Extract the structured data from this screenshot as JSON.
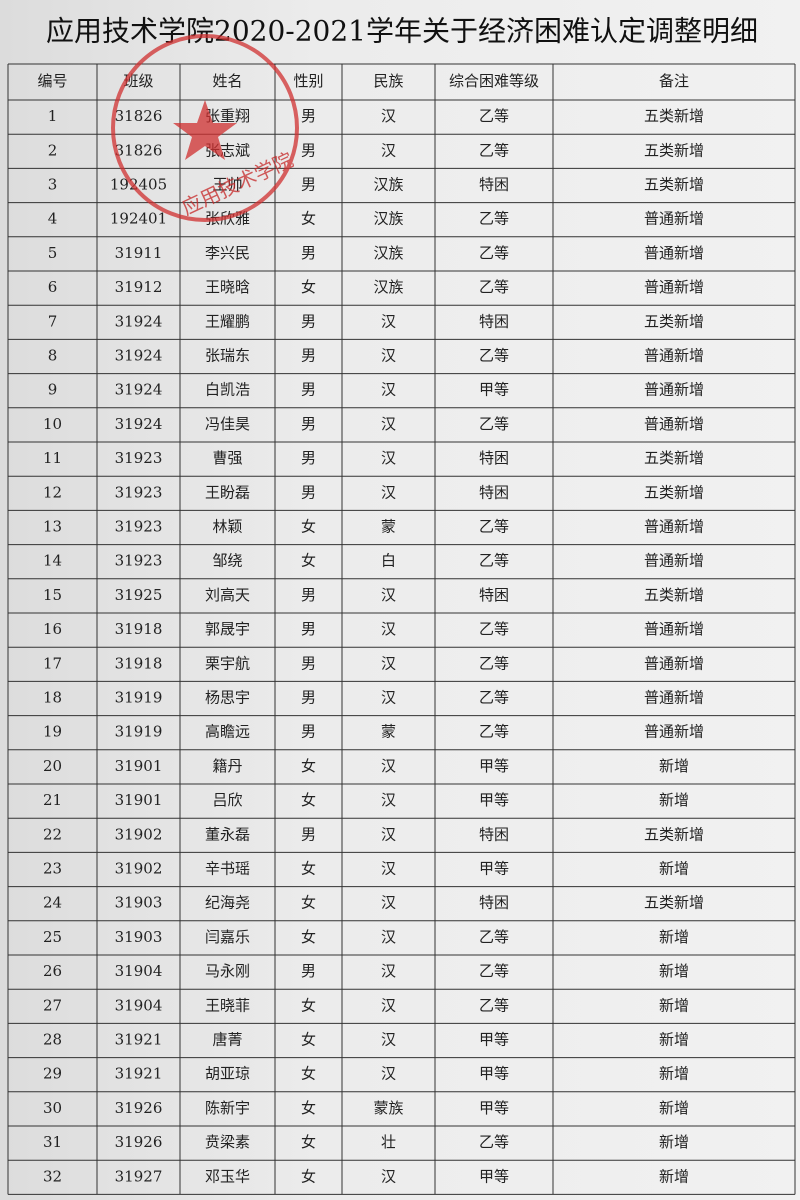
{
  "title": "应用技术学院2020-2021学年关于经济困难认定调整明细",
  "stamp": "应用技术学院",
  "table": {
    "header": [
      "编号",
      "班级",
      "姓名",
      "性别",
      "民族",
      "综合困难等级",
      "备注"
    ],
    "rows": [
      [
        "1",
        "31826",
        "张重翔",
        "男",
        "汉",
        "乙等",
        "五类新增"
      ],
      [
        "2",
        "31826",
        "张志斌",
        "男",
        "汉",
        "乙等",
        "五类新增"
      ],
      [
        "3",
        "192405",
        "王帅",
        "男",
        "汉族",
        "特困",
        "五类新增"
      ],
      [
        "4",
        "192401",
        "张欣雅",
        "女",
        "汉族",
        "乙等",
        "普通新增"
      ],
      [
        "5",
        "31911",
        "李兴民",
        "男",
        "汉族",
        "乙等",
        "普通新增"
      ],
      [
        "6",
        "31912",
        "王晓晗",
        "女",
        "汉族",
        "乙等",
        "普通新增"
      ],
      [
        "7",
        "31924",
        "王耀鹏",
        "男",
        "汉",
        "特困",
        "五类新增"
      ],
      [
        "8",
        "31924",
        "张瑞东",
        "男",
        "汉",
        "乙等",
        "普通新增"
      ],
      [
        "9",
        "31924",
        "白凯浩",
        "男",
        "汉",
        "甲等",
        "普通新增"
      ],
      [
        "10",
        "31924",
        "冯佳昊",
        "男",
        "汉",
        "乙等",
        "普通新增"
      ],
      [
        "11",
        "31923",
        "曹强",
        "男",
        "汉",
        "特困",
        "五类新增"
      ],
      [
        "12",
        "31923",
        "王盼磊",
        "男",
        "汉",
        "特困",
        "五类新增"
      ],
      [
        "13",
        "31923",
        "林颖",
        "女",
        "蒙",
        "乙等",
        "普通新增"
      ],
      [
        "14",
        "31923",
        "邹绕",
        "女",
        "白",
        "乙等",
        "普通新增"
      ],
      [
        "15",
        "31925",
        "刘高天",
        "男",
        "汉",
        "特困",
        "五类新增"
      ],
      [
        "16",
        "31918",
        "郭晟宇",
        "男",
        "汉",
        "乙等",
        "普通新增"
      ],
      [
        "17",
        "31918",
        "栗宇航",
        "男",
        "汉",
        "乙等",
        "普通新增"
      ],
      [
        "18",
        "31919",
        "杨思宇",
        "男",
        "汉",
        "乙等",
        "普通新增"
      ],
      [
        "19",
        "31919",
        "高瞻远",
        "男",
        "蒙",
        "乙等",
        "普通新增"
      ],
      [
        "20",
        "31901",
        "籍丹",
        "女",
        "汉",
        "甲等",
        "新增"
      ],
      [
        "21",
        "31901",
        "吕欣",
        "女",
        "汉",
        "甲等",
        "新增"
      ],
      [
        "22",
        "31902",
        "董永磊",
        "男",
        "汉",
        "特困",
        "五类新增"
      ],
      [
        "23",
        "31902",
        "辛书瑶",
        "女",
        "汉",
        "甲等",
        "新增"
      ],
      [
        "24",
        "31903",
        "纪海尧",
        "女",
        "汉",
        "特困",
        "五类新增"
      ],
      [
        "25",
        "31903",
        "闫嘉乐",
        "女",
        "汉",
        "乙等",
        "新增"
      ],
      [
        "26",
        "31904",
        "马永刚",
        "男",
        "汉",
        "乙等",
        "新增"
      ],
      [
        "27",
        "31904",
        "王晓菲",
        "女",
        "汉",
        "乙等",
        "新增"
      ],
      [
        "28",
        "31921",
        "唐菁",
        "女",
        "汉",
        "甲等",
        "新增"
      ],
      [
        "29",
        "31921",
        "胡亚琼",
        "女",
        "汉",
        "甲等",
        "新增"
      ],
      [
        "30",
        "31926",
        "陈新宇",
        "女",
        "蒙族",
        "甲等",
        "新增"
      ],
      [
        "31",
        "31926",
        "贲梁素",
        "女",
        "壮",
        "乙等",
        "新增"
      ],
      [
        "32",
        "31927",
        "邓玉华",
        "女",
        "汉",
        "甲等",
        "新增"
      ]
    ]
  }
}
